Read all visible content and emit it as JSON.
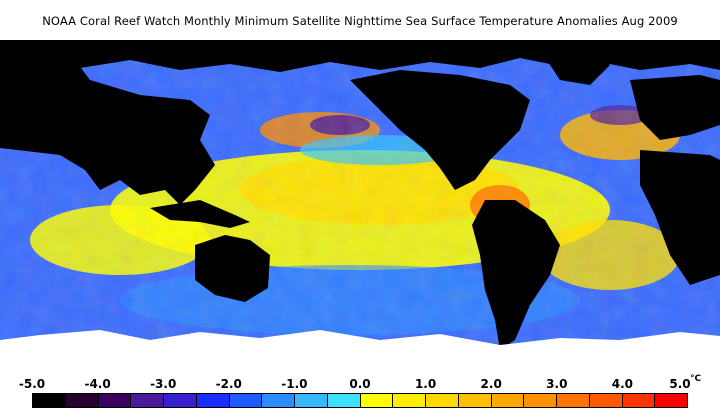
{
  "title": "NOAA Coral Reef Watch Monthly Minimum Satellite Nighttime Sea Surface Temperature Anomalies    Aug 2009",
  "legend": {
    "tick_labels": [
      "-5.0",
      "-4.0",
      "-3.0",
      "-2.0",
      "-1.0",
      "0.0",
      "1.0",
      "2.0",
      "3.0",
      "4.0",
      "5.0"
    ],
    "unit": "°C",
    "colors": [
      "#000000",
      "#280030",
      "#3c0060",
      "#4a1a9a",
      "#3a1ed2",
      "#1a2dff",
      "#1e5cff",
      "#2b8cff",
      "#35b8ff",
      "#3ee0ff",
      "#ffff00",
      "#ffee00",
      "#ffd800",
      "#ffc000",
      "#ffa800",
      "#ff9000",
      "#ff7400",
      "#ff5800",
      "#ff3400",
      "#ff0000"
    ]
  },
  "map": {
    "land_color": "#000000",
    "ice_color": "#ffffff",
    "ocean_palette": [
      "#2040ff",
      "#3a6bff",
      "#33c8ff",
      "#ffff00",
      "#ffe000",
      "#ffb400",
      "#ff8000",
      "#4a1aa0"
    ]
  }
}
